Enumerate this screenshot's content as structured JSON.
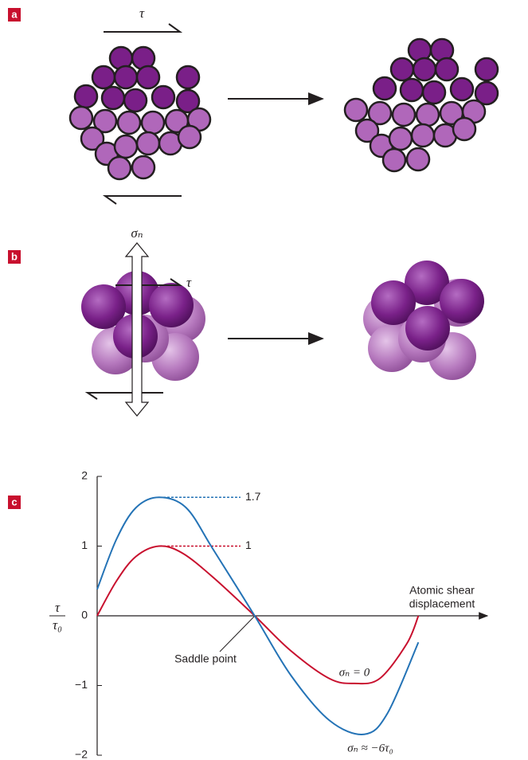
{
  "panel_labels": [
    "a",
    "b",
    "c"
  ],
  "panel_a": {
    "shear_label": "τ"
  },
  "panel_b": {
    "normal_label": "σₙ",
    "shear_label": "τ"
  },
  "chart_data": {
    "type": "line",
    "x_label": [
      "Atomic shear",
      "displacement"
    ],
    "y_label": {
      "numerator": "τ",
      "denominator": "τ₀"
    },
    "annotation": "Saddle point",
    "xlim": [
      0,
      10
    ],
    "ylim": [
      -2,
      2
    ],
    "yticks": [
      2,
      1,
      0,
      {
        "value": -1,
        "label": "−1"
      },
      {
        "value": -2,
        "label": "−2"
      }
    ],
    "reference_lines": [
      {
        "value": 1.7,
        "color": "#2473b6"
      },
      {
        "value": 1,
        "color": "#c8102e"
      }
    ],
    "series": [
      {
        "name": "σₙ = 0",
        "color": "#c8102e",
        "x": [
          0,
          0.5,
          1,
          1.6,
          2.2,
          3,
          4.07,
          5,
          6,
          6.65,
          7.3,
          8,
          8.3
        ],
        "values": [
          0,
          0.5,
          0.85,
          1,
          0.9,
          0.55,
          0,
          -0.5,
          -0.9,
          -0.97,
          -0.9,
          -0.4,
          0
        ]
      },
      {
        "name": "σₙ ≈ −6τ₀",
        "color": "#2473b6",
        "x": [
          0,
          0.5,
          1,
          1.6,
          2.3,
          3,
          4.07,
          5,
          6,
          6.9,
          7.5,
          8.3
        ],
        "values": [
          0.38,
          1.1,
          1.55,
          1.7,
          1.55,
          0.95,
          0,
          -0.85,
          -1.5,
          -1.7,
          -1.4,
          -0.38
        ]
      }
    ]
  }
}
